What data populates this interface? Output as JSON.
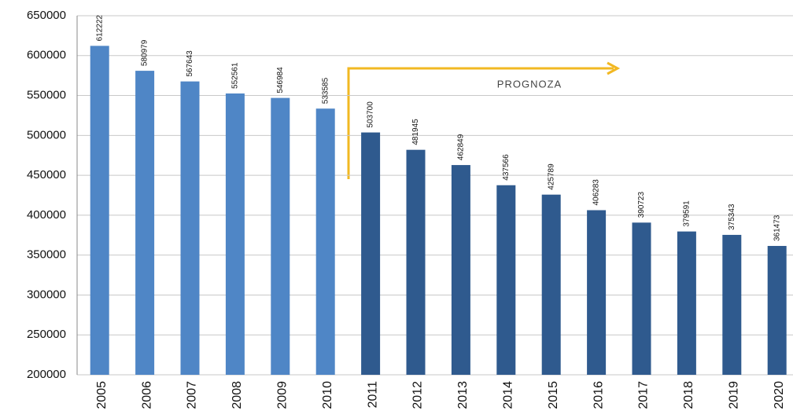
{
  "chart_data": {
    "type": "bar",
    "categories": [
      "2005",
      "2006",
      "2007",
      "2008",
      "2009",
      "2010",
      "2011",
      "2012",
      "2013",
      "2014",
      "2015",
      "2016",
      "2017",
      "2018",
      "2019",
      "2020"
    ],
    "values": [
      612222,
      580979,
      567643,
      552561,
      546984,
      533585,
      503700,
      481945,
      462849,
      437566,
      425789,
      406283,
      390723,
      379591,
      375343,
      361473
    ],
    "colors": [
      "#4f86c6",
      "#4f86c6",
      "#4f86c6",
      "#4f86c6",
      "#4f86c6",
      "#4f86c6",
      "#2f5a8e",
      "#2f5a8e",
      "#2f5a8e",
      "#2f5a8e",
      "#2f5a8e",
      "#2f5a8e",
      "#2f5a8e",
      "#2f5a8e",
      "#2f5a8e",
      "#2f5a8e"
    ],
    "annotation": "PROGNOZA",
    "ylim": [
      200000,
      650000
    ],
    "yticks": [
      200000,
      250000,
      300000,
      350000,
      400000,
      450000,
      500000,
      550000,
      600000,
      650000
    ],
    "grid": true
  }
}
